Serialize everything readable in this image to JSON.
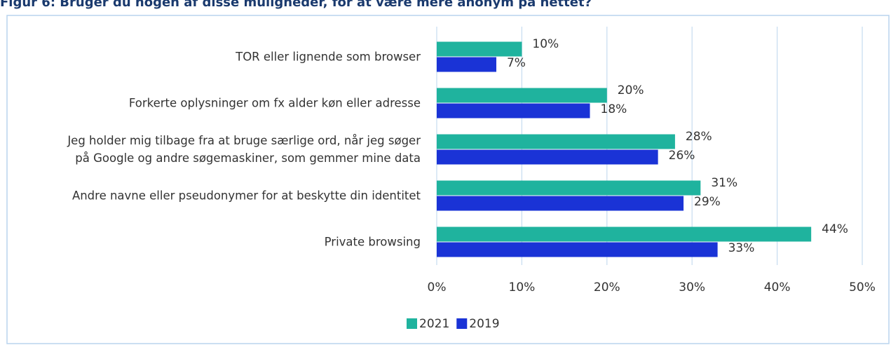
{
  "chart_data": {
    "type": "bar",
    "orientation": "horizontal",
    "title": "Figur 6: Bruger du nogen af disse muligheder, for at være mere anonym på nettet?",
    "categories": [
      "TOR eller lignende som browser",
      "Forkerte oplysninger om fx alder køn eller adresse",
      "Jeg holder mig tilbage fra at bruge særlige ord, når jeg søger\npå Google og andre søgemaskiner, som gemmer mine data",
      "Andre navne eller pseudonymer for at beskytte din identitet",
      "Private browsing"
    ],
    "series": [
      {
        "name": "2021",
        "color": "#1fb39e",
        "values": [
          10,
          20,
          28,
          31,
          44
        ],
        "value_labels": [
          "10%",
          "20%",
          "28%",
          "31%",
          "44%"
        ]
      },
      {
        "name": "2019",
        "color": "#1a33d6",
        "values": [
          7,
          18,
          26,
          29,
          33
        ],
        "value_labels": [
          "7%",
          "18%",
          "26%",
          "29%",
          "33%"
        ]
      }
    ],
    "xlim": [
      0,
      50
    ],
    "xticks": [
      {
        "value": 0,
        "label": "0%"
      },
      {
        "value": 10,
        "label": "10%"
      },
      {
        "value": 20,
        "label": "20%"
      },
      {
        "value": 30,
        "label": "30%"
      },
      {
        "value": 40,
        "label": "40%"
      },
      {
        "value": 50,
        "label": "50%"
      }
    ],
    "grid": true,
    "legend": "bottom"
  }
}
